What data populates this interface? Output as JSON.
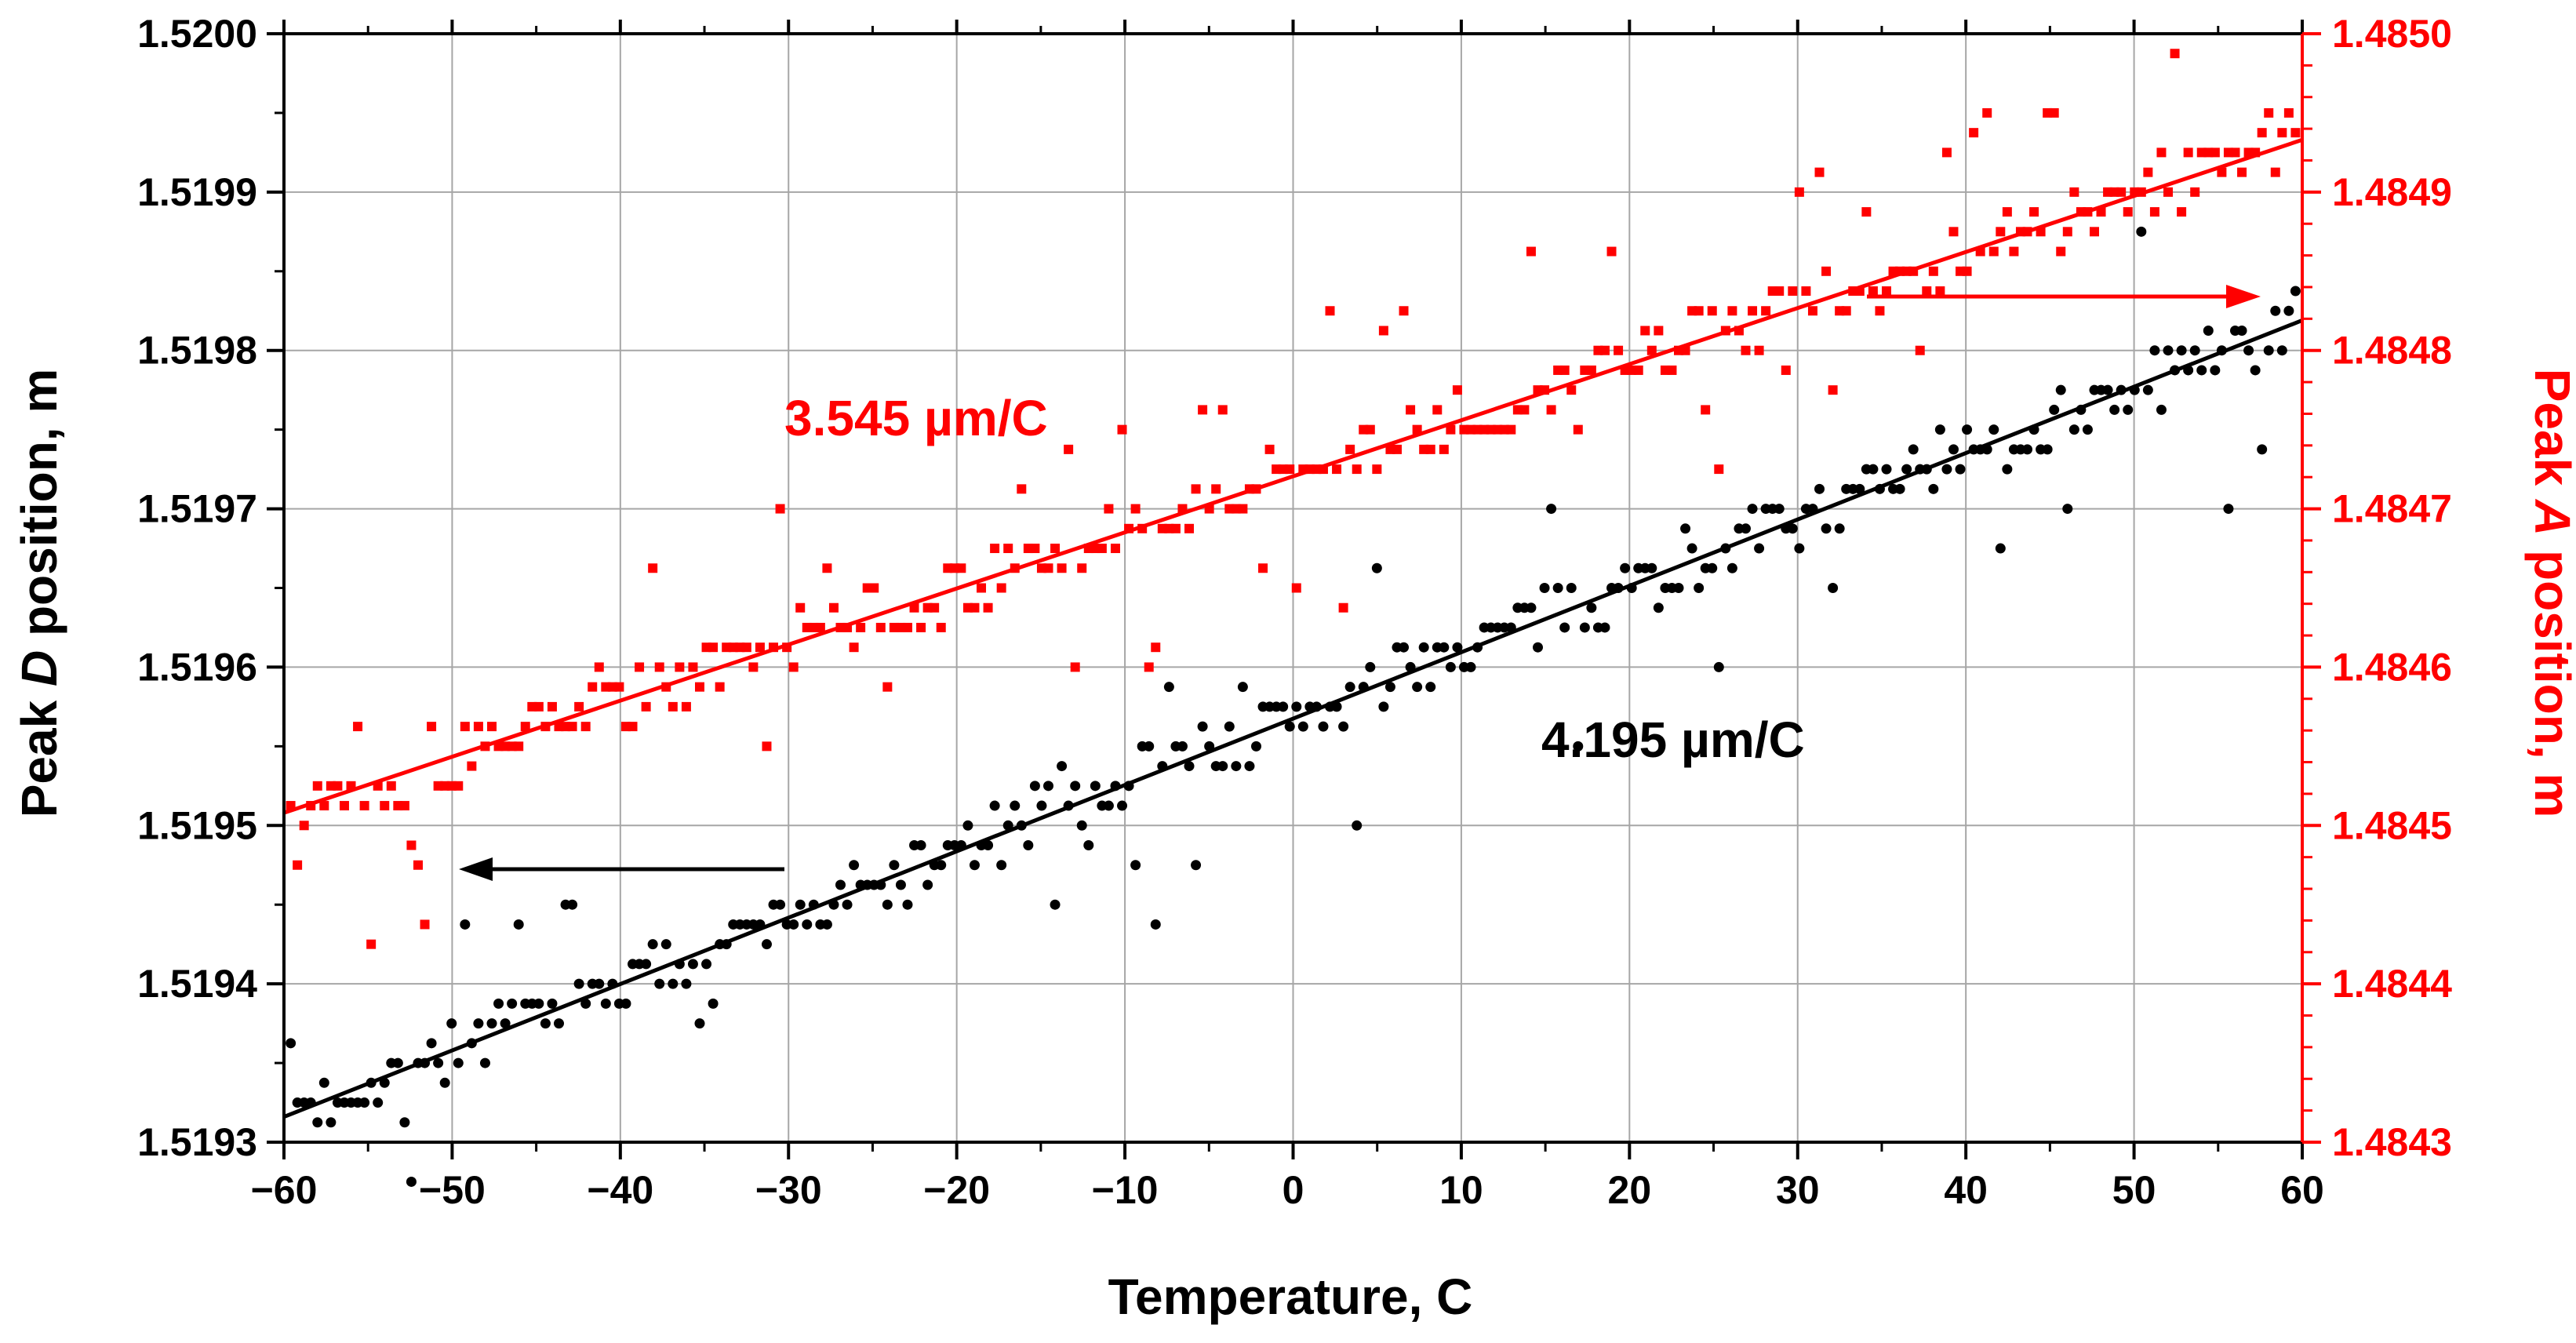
{
  "chart_data": {
    "type": "scatter",
    "xlabel": "Temperature, C",
    "ylabel_left": {
      "prefix": "Peak ",
      "italic": "D",
      "suffix": " position, m"
    },
    "ylabel_right": {
      "prefix": "Peak ",
      "italic": "A",
      "suffix": " position, m"
    },
    "xlim": [
      -60,
      60
    ],
    "ylim_left": [
      1.5193,
      1.52
    ],
    "ylim_right": [
      1.4843,
      1.485
    ],
    "x_ticks": [
      -60,
      -50,
      -40,
      -30,
      -20,
      -10,
      0,
      10,
      20,
      30,
      40,
      50,
      60
    ],
    "x_tick_labels": [
      "−60",
      "−50",
      "−40",
      "−30",
      "−20",
      "−10",
      "0",
      "10",
      "20",
      "30",
      "40",
      "50",
      "60"
    ],
    "y_left_ticks": [
      1.5193,
      1.5194,
      1.5195,
      1.5196,
      1.5197,
      1.5198,
      1.5199,
      1.52
    ],
    "y_left_tick_labels": [
      "1.5193",
      "1.5194",
      "1.5195",
      "1.5196",
      "1.5197",
      "1.5198",
      "1.5199",
      "1.5200"
    ],
    "y_right_ticks": [
      1.4843,
      1.4844,
      1.4845,
      1.4846,
      1.4847,
      1.4848,
      1.4849,
      1.485
    ],
    "y_right_tick_labels": [
      "1.4843",
      "1.4844",
      "1.4845",
      "1.4846",
      "1.4847",
      "1.4848",
      "1.4849",
      "1.4850"
    ],
    "grid": true,
    "series": [
      {
        "name": "Peak D",
        "axis": "left",
        "marker": "circle",
        "color": "#000000",
        "fit": {
          "x": [
            -60,
            60
          ],
          "y": [
            1.519316,
            1.519819
          ]
        },
        "slope_label": "4.195 µm/C",
        "arrow": "left",
        "x_start": -59.6,
        "x_end": 59.6,
        "count": 300,
        "quantum": 1.25e-05,
        "seed": 7
      },
      {
        "name": "Peak A",
        "axis": "right",
        "marker": "square",
        "color": "#ff0000",
        "fit": {
          "x": [
            -60,
            60
          ],
          "y": [
            1.484508,
            1.484933
          ]
        },
        "slope_label": "3.545 µm/C",
        "arrow": "right",
        "x_start": -59.6,
        "x_end": 59.6,
        "count": 300,
        "quantum": 1.25e-05,
        "seed": 13
      }
    ]
  },
  "colors": {
    "accent_right": "#ff0000",
    "primary": "#000000",
    "grid": "#a6a6a6"
  }
}
